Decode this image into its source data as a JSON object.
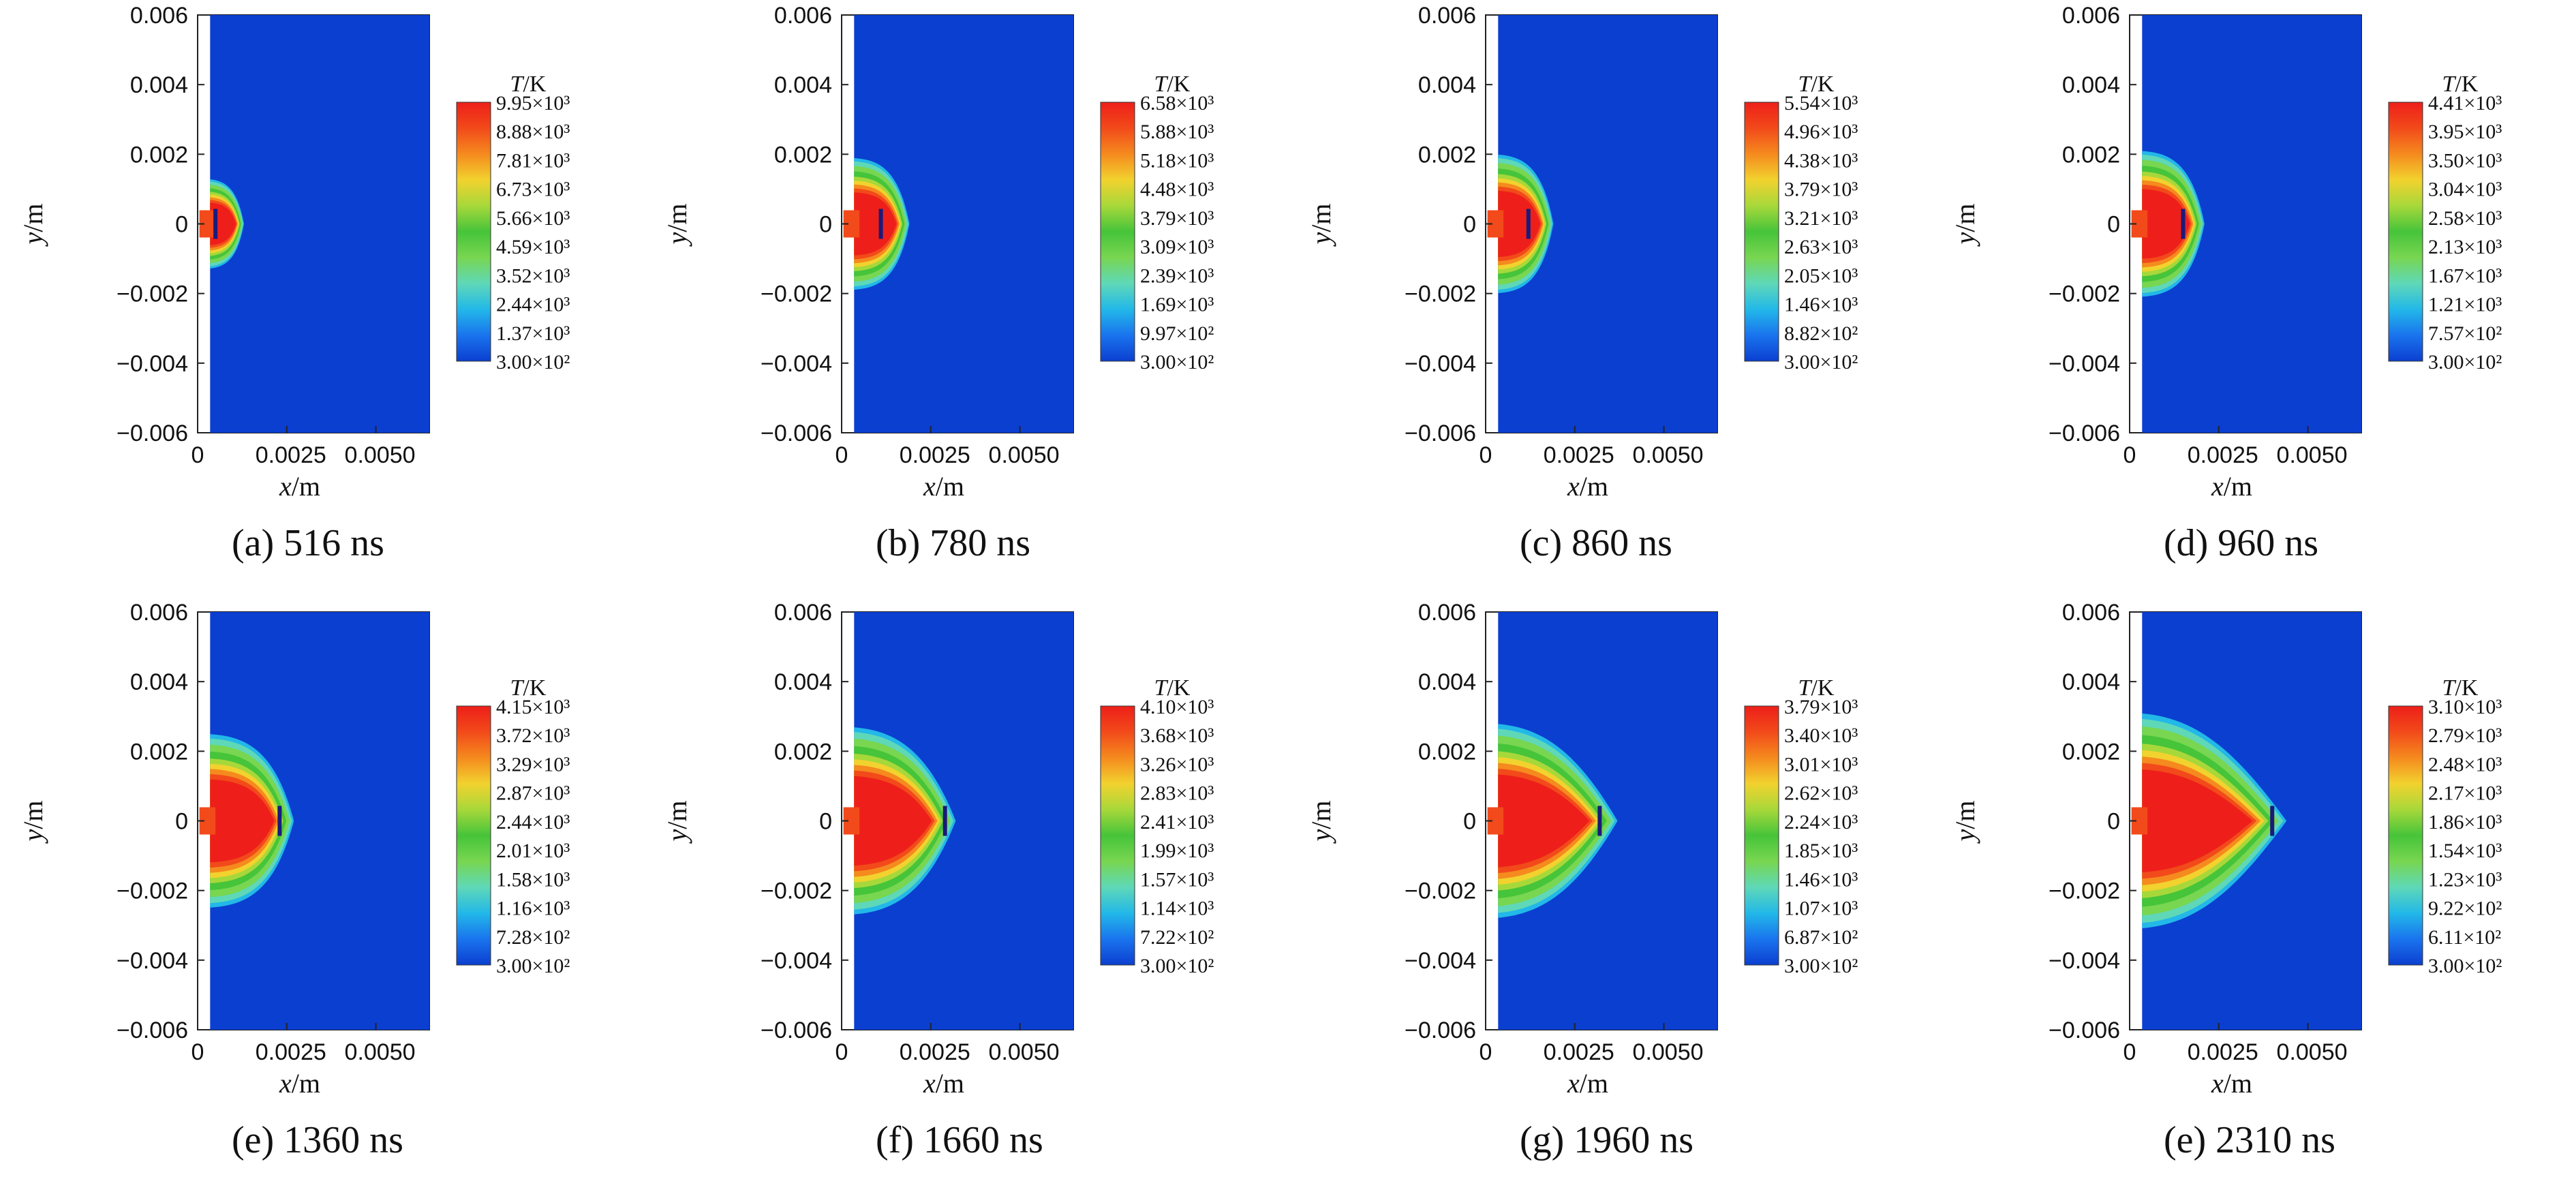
{
  "colors": {
    "background_field": "#0b3fd0",
    "colormap": [
      "#0b3fd0",
      "#1a74ee",
      "#22b8e8",
      "#5fd8b8",
      "#78d650",
      "#46c43a",
      "#a7d83a",
      "#f2d22e",
      "#f58a1e",
      "#f24a1a",
      "#ee1f1a"
    ]
  },
  "chart_data": [
    {
      "type": "heatmap",
      "caption": "(a) 516 ns",
      "time_ns": 516,
      "xlabel": "x/m",
      "ylabel": "y/m",
      "xlim": [
        0,
        0.0065
      ],
      "ylim": [
        -0.006,
        0.006
      ],
      "xticks": [
        "0",
        "0.0025",
        "0.0050"
      ],
      "yticks": [
        "0.006",
        "0.004",
        "0.002",
        "0",
        "−0.002",
        "−0.004",
        "−0.006"
      ],
      "colorbar_title": "T/K",
      "colorbar_labels": [
        "9.95×10³",
        "8.88×10³",
        "7.81×10³",
        "6.73×10³",
        "5.66×10³",
        "4.59×10³",
        "3.52×10³",
        "2.44×10³",
        "1.37×10³",
        "3.00×10²"
      ],
      "plume": {
        "front_x": 0.0013,
        "half_height": 0.0013,
        "core_x": 0.0005,
        "neck": 0.85
      }
    },
    {
      "type": "heatmap",
      "caption": "(b) 780 ns",
      "time_ns": 780,
      "xlabel": "x/m",
      "ylabel": "y/m",
      "xlim": [
        0,
        0.0065
      ],
      "ylim": [
        -0.006,
        0.006
      ],
      "xticks": [
        "0",
        "0.0025",
        "0.0050"
      ],
      "yticks": [
        "0.006",
        "0.004",
        "0.002",
        "0",
        "−0.002",
        "−0.004",
        "−0.006"
      ],
      "colorbar_title": "T/K",
      "colorbar_labels": [
        "6.58×10³",
        "5.88×10³",
        "5.18×10³",
        "4.48×10³",
        "3.79×10³",
        "3.09×10³",
        "2.39×10³",
        "1.69×10³",
        "9.97×10²",
        "3.00×10²"
      ],
      "plume": {
        "front_x": 0.0019,
        "half_height": 0.0019,
        "core_x": 0.0011,
        "neck": 0.9
      }
    },
    {
      "type": "heatmap",
      "caption": "(c) 860 ns",
      "time_ns": 860,
      "xlabel": "x/m",
      "ylabel": "y/m",
      "xlim": [
        0,
        0.0065
      ],
      "ylim": [
        -0.006,
        0.006
      ],
      "xticks": [
        "0",
        "0.0025",
        "0.0050"
      ],
      "yticks": [
        "0.006",
        "0.004",
        "0.002",
        "0",
        "−0.002",
        "−0.004",
        "−0.006"
      ],
      "colorbar_title": "T/K",
      "colorbar_labels": [
        "5.54×10³",
        "4.96×10³",
        "4.38×10³",
        "3.79×10³",
        "3.21×10³",
        "2.63×10³",
        "2.05×10³",
        "1.46×10³",
        "8.82×10²",
        "3.00×10²"
      ],
      "plume": {
        "front_x": 0.0019,
        "half_height": 0.002,
        "core_x": 0.0012,
        "neck": 0.9
      }
    },
    {
      "type": "heatmap",
      "caption": "(d) 960 ns",
      "time_ns": 960,
      "xlabel": "x/m",
      "ylabel": "y/m",
      "xlim": [
        0,
        0.0065
      ],
      "ylim": [
        -0.006,
        0.006
      ],
      "xticks": [
        "0",
        "0.0025",
        "0.0050"
      ],
      "yticks": [
        "0.006",
        "0.004",
        "0.002",
        "0",
        "−0.002",
        "−0.004",
        "−0.006"
      ],
      "colorbar_title": "T/K",
      "colorbar_labels": [
        "4.41×10³",
        "3.95×10³",
        "3.50×10³",
        "3.04×10³",
        "2.58×10³",
        "2.13×10³",
        "1.67×10³",
        "1.21×10³",
        "7.57×10²",
        "3.00×10²"
      ],
      "plume": {
        "front_x": 0.0021,
        "half_height": 0.0021,
        "core_x": 0.0015,
        "neck": 0.9
      }
    },
    {
      "type": "heatmap",
      "caption": "(e) 1360 ns",
      "time_ns": 1360,
      "xlabel": "x/m",
      "ylabel": "y/m",
      "xlim": [
        0,
        0.0065
      ],
      "ylim": [
        -0.006,
        0.006
      ],
      "xticks": [
        "0",
        "0.0025",
        "0.0050"
      ],
      "yticks": [
        "0.006",
        "0.004",
        "0.002",
        "0",
        "−0.002",
        "−0.004",
        "−0.006"
      ],
      "colorbar_title": "T/K",
      "colorbar_labels": [
        "4.15×10³",
        "3.72×10³",
        "3.29×10³",
        "2.87×10³",
        "2.44×10³",
        "2.01×10³",
        "1.58×10³",
        "1.16×10³",
        "7.28×10²",
        "3.00×10²"
      ],
      "plume": {
        "front_x": 0.0027,
        "half_height": 0.0025,
        "core_x": 0.0023,
        "neck": 0.8
      }
    },
    {
      "type": "heatmap",
      "caption": "(f) 1660 ns",
      "time_ns": 1660,
      "xlabel": "x/m",
      "ylabel": "y/m",
      "xlim": [
        0,
        0.0065
      ],
      "ylim": [
        -0.006,
        0.006
      ],
      "xticks": [
        "0",
        "0.0025",
        "0.0050"
      ],
      "yticks": [
        "0.006",
        "0.004",
        "0.002",
        "0",
        "−0.002",
        "−0.004",
        "−0.006"
      ],
      "colorbar_title": "T/K",
      "colorbar_labels": [
        "4.10×10³",
        "3.68×10³",
        "3.26×10³",
        "2.83×10³",
        "2.41×10³",
        "1.99×10³",
        "1.57×10³",
        "1.14×10³",
        "7.22×10²",
        "3.00×10²"
      ],
      "plume": {
        "front_x": 0.0032,
        "half_height": 0.0027,
        "core_x": 0.0029,
        "neck": 0.6
      }
    },
    {
      "type": "heatmap",
      "caption": "(g) 1960 ns",
      "time_ns": 1960,
      "xlabel": "x/m",
      "ylabel": "y/m",
      "xlim": [
        0,
        0.0065
      ],
      "ylim": [
        -0.006,
        0.006
      ],
      "xticks": [
        "0",
        "0.0025",
        "0.0050"
      ],
      "yticks": [
        "0.006",
        "0.004",
        "0.002",
        "0",
        "−0.002",
        "−0.004",
        "−0.006"
      ],
      "colorbar_title": "T/K",
      "colorbar_labels": [
        "3.79×10³",
        "3.40×10³",
        "3.01×10³",
        "2.62×10³",
        "2.24×10³",
        "1.85×10³",
        "1.46×10³",
        "1.07×10³",
        "6.87×10²",
        "3.00×10²"
      ],
      "plume": {
        "front_x": 0.0037,
        "half_height": 0.0028,
        "core_x": 0.0032,
        "neck": 0.4
      }
    },
    {
      "type": "heatmap",
      "caption": "(e) 2310 ns",
      "time_ns": 2310,
      "xlabel": "x/m",
      "ylabel": "y/m",
      "xlim": [
        0,
        0.0065
      ],
      "ylim": [
        -0.006,
        0.006
      ],
      "xticks": [
        "0",
        "0.0025",
        "0.0050"
      ],
      "yticks": [
        "0.006",
        "0.004",
        "0.002",
        "0",
        "−0.002",
        "−0.004",
        "−0.006"
      ],
      "colorbar_title": "T/K",
      "colorbar_labels": [
        "3.10×10³",
        "2.79×10³",
        "2.48×10³",
        "2.17×10³",
        "1.86×10³",
        "1.54×10³",
        "1.23×10³",
        "9.22×10²",
        "6.11×10²",
        "3.00×10²"
      ],
      "plume": {
        "front_x": 0.0044,
        "half_height": 0.0031,
        "core_x": 0.004,
        "neck": 0.3
      }
    }
  ]
}
